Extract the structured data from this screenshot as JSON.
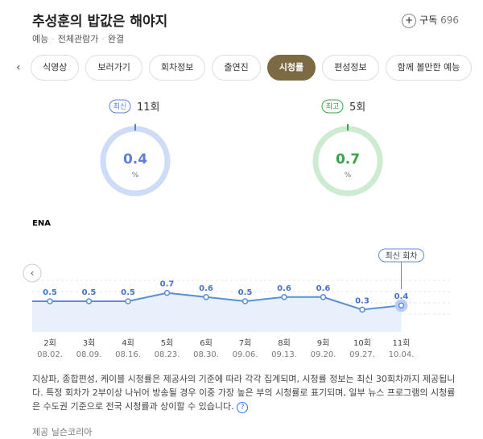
{
  "header": {
    "title": "추성훈의 밥값은 해야지",
    "subscribe": "구독",
    "subscribers": 696,
    "meta": [
      "예능",
      "전체관람가",
      "완결"
    ]
  },
  "tabs": [
    "식영상",
    "보러가기",
    "회차정보",
    "출연진",
    "시청률",
    "편성정보",
    "함께 볼만한 예능"
  ],
  "stats": [
    {
      "badge": "최신",
      "episode": "11회",
      "value": 0.4,
      "unit": "%",
      "color": "#5b7fd6",
      "ring": "#cfdcf7"
    },
    {
      "badge": "최고",
      "episode": "5회",
      "value": 0.7,
      "unit": "%",
      "color": "#3aa34a",
      "ring": "#cdebd0"
    }
  ],
  "chart_data": {
    "type": "line",
    "channel": "ENA",
    "annotation": "최신 회차",
    "categories": [
      "2회",
      "3회",
      "4회",
      "5회",
      "6회",
      "7회",
      "8회",
      "9회",
      "10회",
      "11회"
    ],
    "dates": [
      "08.02.",
      "08.09.",
      "08.16.",
      "08.23.",
      "08.30.",
      "09.06.",
      "09.13.",
      "09.20.",
      "09.27.",
      "10.04."
    ],
    "values": [
      0.5,
      0.5,
      0.5,
      0.7,
      0.6,
      0.5,
      0.6,
      0.6,
      0.3,
      0.4
    ],
    "color": "#5b8ed6"
  },
  "footer": {
    "note": "지상파, 종합편성, 케이블 시청률은 제공사의 기준에 따라 각각 집계되며, 시청률 정보는 최신 30회차까지 제공됩니다. 특정 회차가 2부이상 나뉘어 방송될 경우 이중 가장 높은 부의 시청률로 표기되며, 일부 뉴스 프로그램의 시청률은 수도권 기준으로 전국 시청률과 상이할 수 있습니다.",
    "source": "제공 닐슨코리아"
  }
}
